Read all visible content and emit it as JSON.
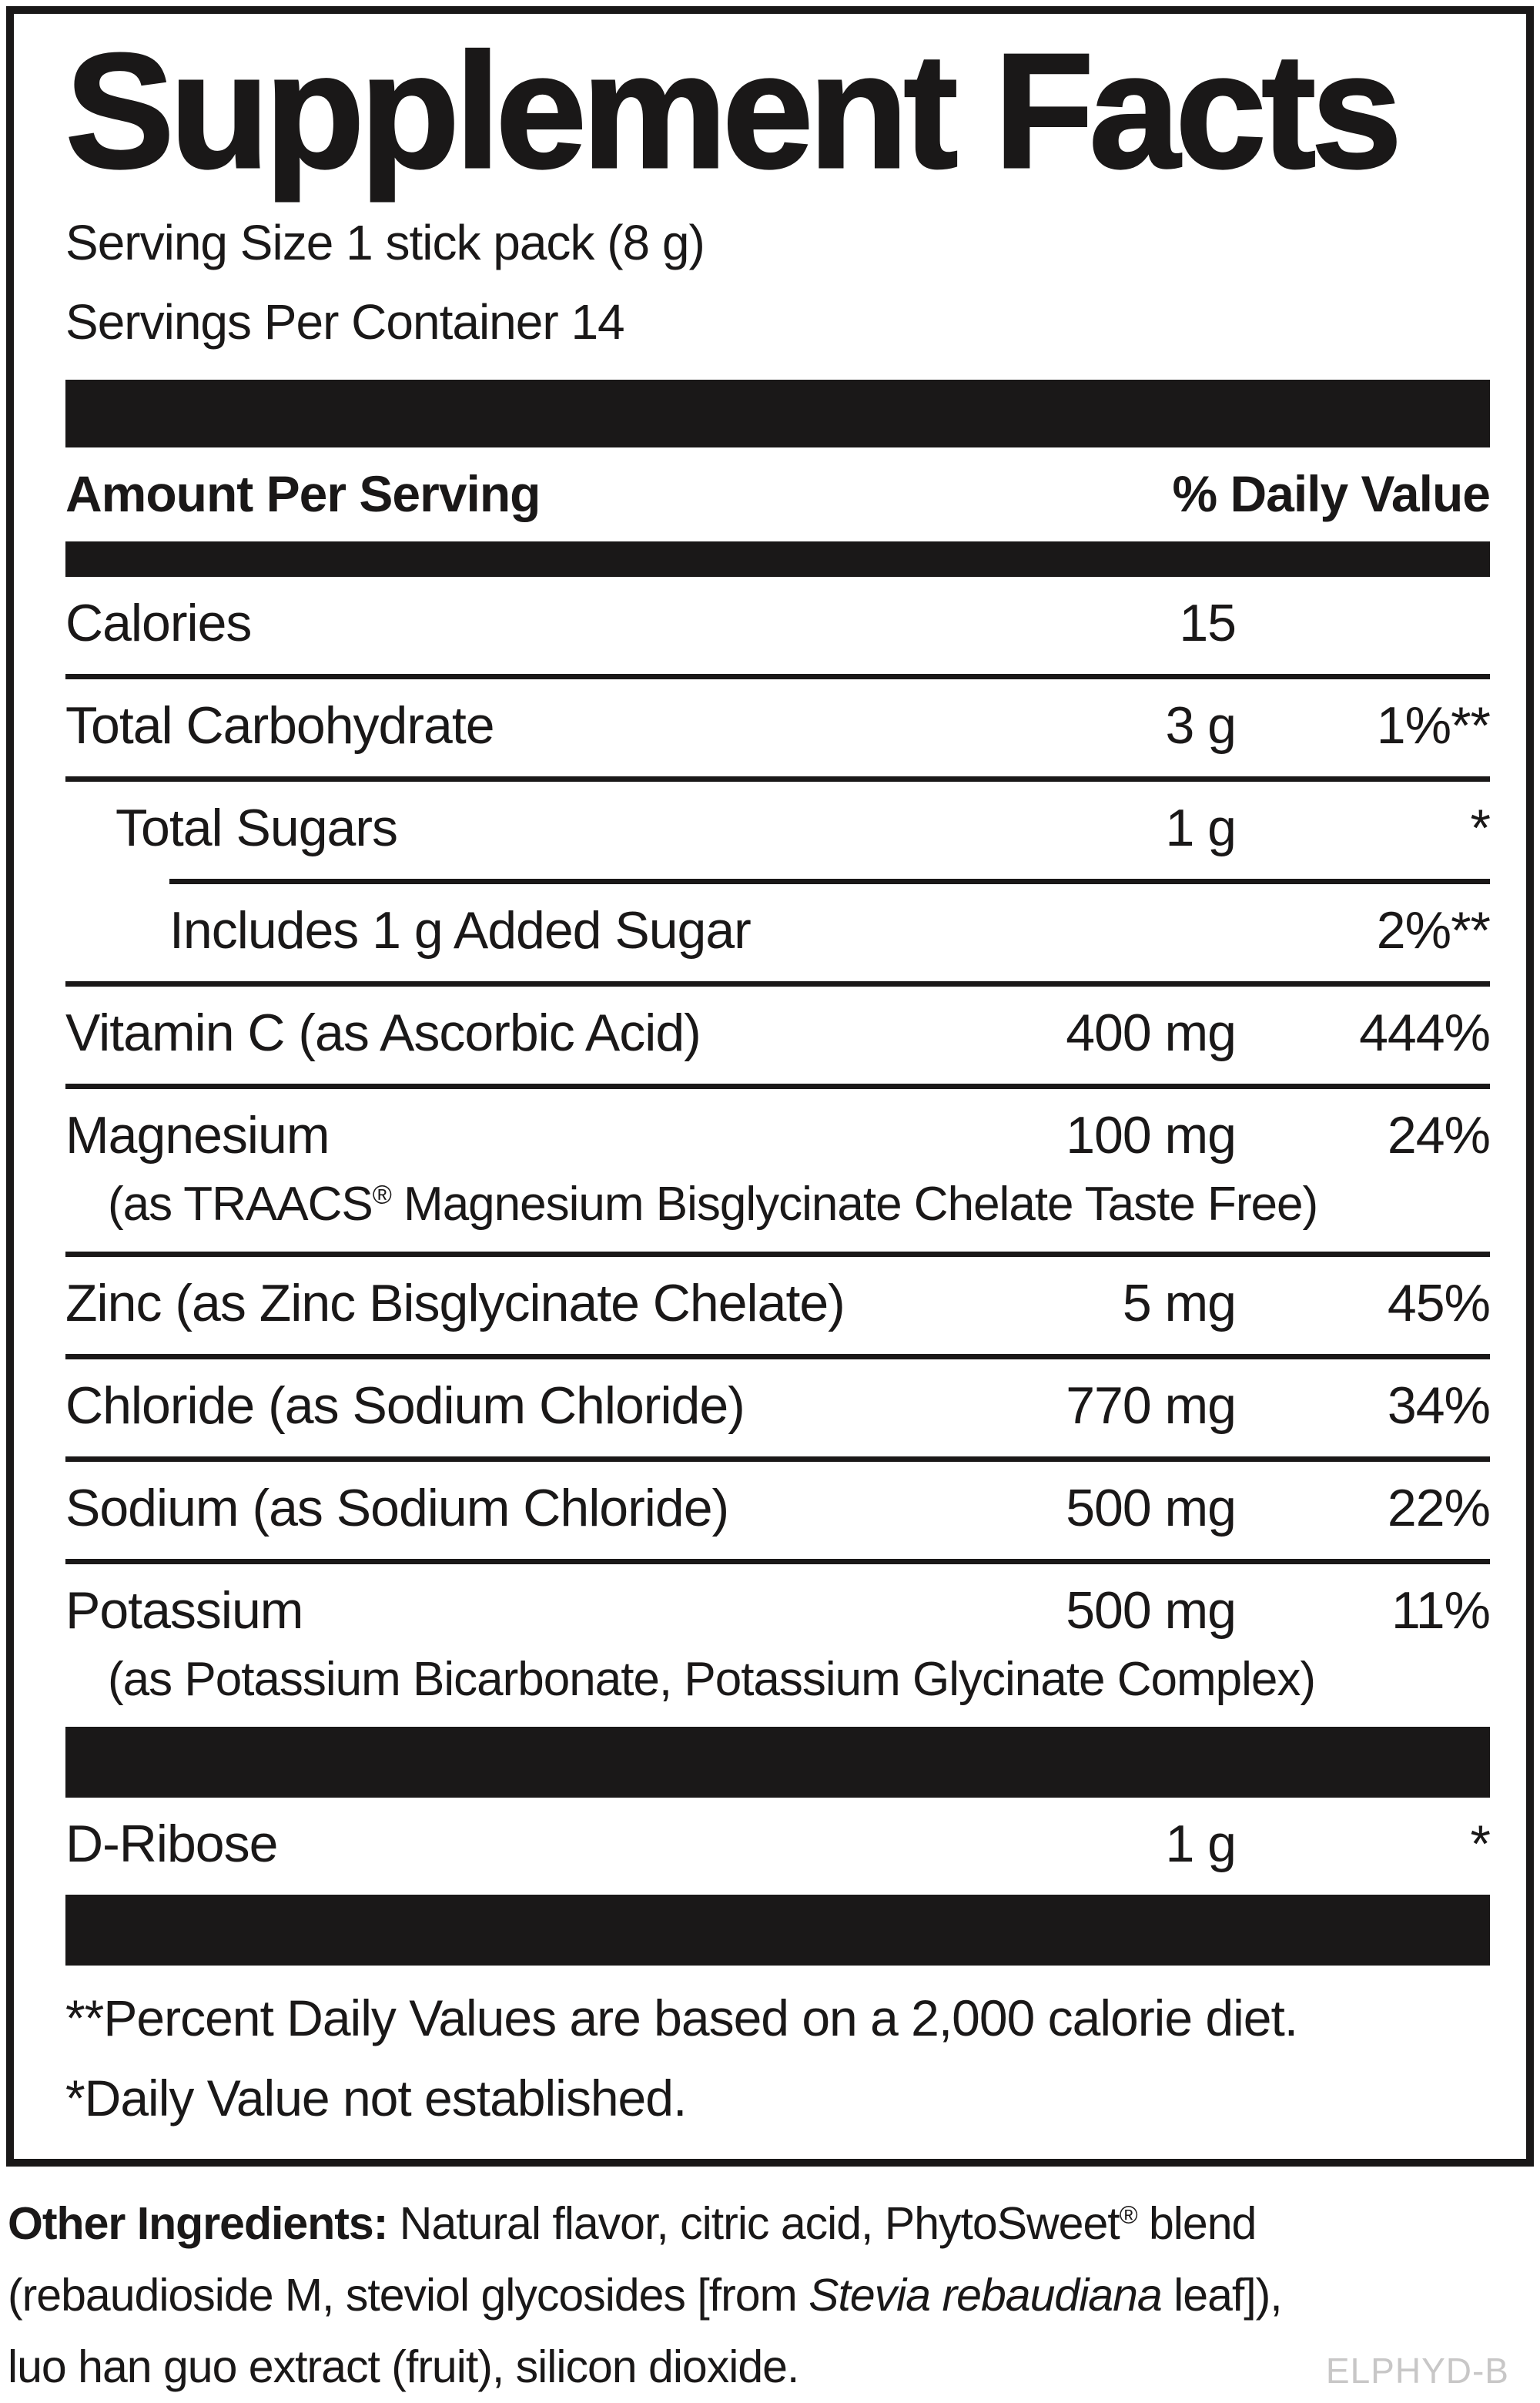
{
  "label": {
    "title": "Supplement Facts",
    "serving_size": "Serving Size 1 stick pack (8 g)",
    "servings_per_container": "Servings Per Container 14",
    "column_headers": {
      "left": "Amount Per Serving",
      "right": "% Daily Value"
    },
    "rows": [
      {
        "name": "Calories",
        "amount": "15",
        "dv": "",
        "indent": 0,
        "rule_above": false
      },
      {
        "name": "Total Carbohydrate",
        "amount": "3 g",
        "dv": "1%**",
        "indent": 0,
        "rule_above": true,
        "rule_indent": 0
      },
      {
        "name": "Total Sugars",
        "amount": "1 g",
        "dv": "*",
        "indent": 1,
        "rule_above": true,
        "rule_indent": 0
      },
      {
        "name": "Includes 1 g Added Sugar",
        "amount": "",
        "dv": "2%**",
        "indent": 2,
        "rule_above": true,
        "rule_indent": 2
      },
      {
        "name": "Vitamin C (as Ascorbic Acid)",
        "amount": "400 mg",
        "dv": "444%",
        "indent": 0,
        "rule_above": true,
        "rule_indent": 0
      },
      {
        "name": "Magnesium",
        "amount": "100 mg",
        "dv": "24%",
        "indent": 0,
        "rule_above": true,
        "rule_indent": 0,
        "subline_segments": [
          {
            "style": "normal",
            "text": "(as TRAACS"
          },
          {
            "style": "sup",
            "text": "®"
          },
          {
            "style": "normal",
            "text": " Magnesium Bisglycinate Chelate Taste Free)"
          }
        ]
      },
      {
        "name": "Zinc (as Zinc Bisglycinate Chelate)",
        "amount": "5 mg",
        "dv": "45%",
        "indent": 0,
        "rule_above": true,
        "rule_indent": 0
      },
      {
        "name": "Chloride (as Sodium Chloride)",
        "amount": "770 mg",
        "dv": "34%",
        "indent": 0,
        "rule_above": true,
        "rule_indent": 0
      },
      {
        "name": "Sodium (as Sodium Chloride)",
        "amount": "500 mg",
        "dv": "22%",
        "indent": 0,
        "rule_above": true,
        "rule_indent": 0
      },
      {
        "name": "Potassium",
        "amount": "500 mg",
        "dv": "11%",
        "indent": 0,
        "rule_above": true,
        "rule_indent": 0,
        "subline": "(as Potassium Bicarbonate, Potassium Glycinate Complex)"
      }
    ],
    "extra_row": {
      "name": "D-Ribose",
      "amount": "1 g",
      "dv": "*",
      "indent": 0,
      "rule_above": false
    },
    "footnotes": [
      "**Percent Daily Values are based on a 2,000 calorie diet.",
      "*Daily Value not established."
    ],
    "other_ingredients_lines": [
      [
        {
          "style": "bold",
          "text": "Other Ingredients: "
        },
        {
          "style": "normal",
          "text": "Natural flavor, citric acid, PhytoSweet"
        },
        {
          "style": "sup",
          "text": "®"
        },
        {
          "style": "normal",
          "text": " blend"
        }
      ],
      [
        {
          "style": "normal",
          "text": "(rebaudioside M, steviol glycosides [from "
        },
        {
          "style": "italic",
          "text": "Stevia rebaudiana"
        },
        {
          "style": "normal",
          "text": " leaf]),"
        }
      ],
      [
        {
          "style": "normal",
          "text": "luo han guo extract (fruit), silicon dioxide."
        }
      ]
    ],
    "product_code": "ELPHYD-B",
    "colors": {
      "ink": "#1a1818",
      "code_gray": "#c8c7c7",
      "background": "#ffffff"
    }
  }
}
